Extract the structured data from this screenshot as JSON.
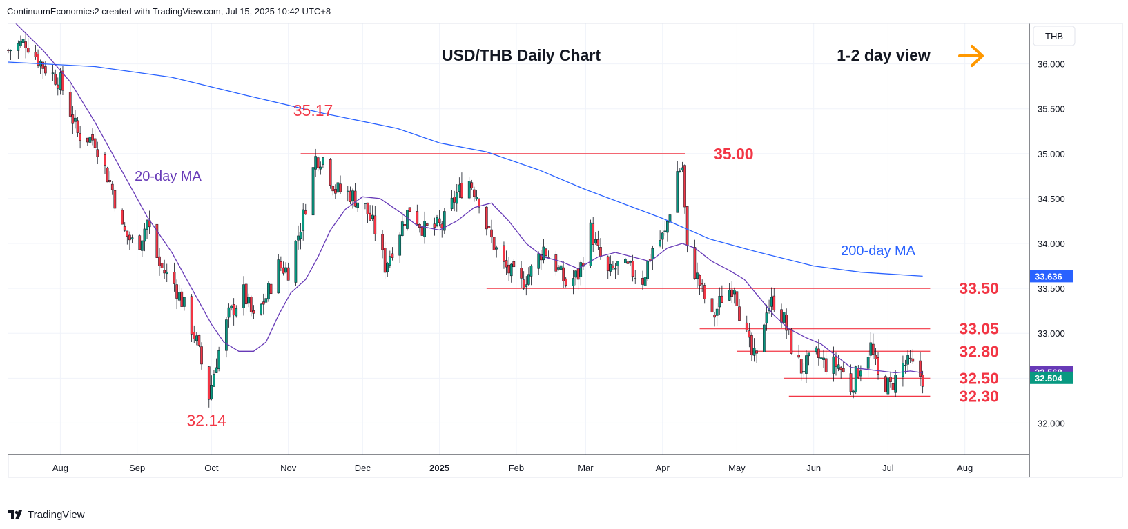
{
  "header": {
    "attribution": "ContinuumEconomics2 created with TradingView.com, Jul 15, 2025 10:42 UTC+8"
  },
  "branding": {
    "logo_text": "TradingView"
  },
  "chart_data": {
    "type": "candlestick",
    "title": "USD/THB Daily Chart",
    "view_note": "1-2 day view",
    "view_icon": "arrow-right-icon",
    "currency_label": "THB",
    "y_range": [
      31.65,
      36.45
    ],
    "y_ticks": [
      "36.000",
      "35.500",
      "35.000",
      "34.500",
      "34.000",
      "33.500",
      "33.000",
      "32.500",
      "32.000"
    ],
    "x_ticks": [
      {
        "label": "Aug",
        "date": "2024-08-01"
      },
      {
        "label": "Sep",
        "date": "2024-09-01"
      },
      {
        "label": "Oct",
        "date": "2024-10-01"
      },
      {
        "label": "Nov",
        "date": "2024-11-01"
      },
      {
        "label": "Dec",
        "date": "2024-12-01"
      },
      {
        "label": "2025",
        "date": "2025-01-01",
        "bold": true
      },
      {
        "label": "Feb",
        "date": "2025-02-01"
      },
      {
        "label": "Mar",
        "date": "2025-03-01"
      },
      {
        "label": "Apr",
        "date": "2025-04-01"
      },
      {
        "label": "May",
        "date": "2025-05-01"
      },
      {
        "label": "Jun",
        "date": "2025-06-01"
      },
      {
        "label": "Jul",
        "date": "2025-07-01"
      },
      {
        "label": "Aug",
        "date": "2025-08-01"
      }
    ],
    "x_range": [
      "2024-07-11",
      "2025-08-27"
    ],
    "colors": {
      "up": "#089981",
      "down": "#f23645",
      "ma20": "#673ab7",
      "ma200": "#2962ff",
      "level": "#f23645",
      "arrow": "#ff9800"
    },
    "price_close": [
      [
        "2024-07-11",
        36.15
      ],
      [
        "2024-07-18",
        36.25
      ],
      [
        "2024-07-25",
        35.98
      ],
      [
        "2024-08-01",
        35.8
      ],
      [
        "2024-08-08",
        35.22
      ],
      [
        "2024-08-15",
        35.15
      ],
      [
        "2024-08-22",
        34.6
      ],
      [
        "2024-08-26",
        34.15
      ],
      [
        "2024-09-01",
        33.95
      ],
      [
        "2024-09-05",
        34.25
      ],
      [
        "2024-09-10",
        33.75
      ],
      [
        "2024-09-16",
        33.55
      ],
      [
        "2024-09-20",
        33.3
      ],
      [
        "2024-09-25",
        32.9
      ],
      [
        "2024-09-30",
        32.3
      ],
      [
        "2024-10-03",
        32.7
      ],
      [
        "2024-10-08",
        33.2
      ],
      [
        "2024-10-14",
        33.45
      ],
      [
        "2024-10-18",
        33.15
      ],
      [
        "2024-10-23",
        33.4
      ],
      [
        "2024-10-28",
        33.75
      ],
      [
        "2024-11-01",
        33.7
      ],
      [
        "2024-11-07",
        34.3
      ],
      [
        "2024-11-12",
        34.95
      ],
      [
        "2024-11-15",
        34.95
      ],
      [
        "2024-11-20",
        34.6
      ],
      [
        "2024-11-26",
        34.55
      ],
      [
        "2024-12-02",
        34.4
      ],
      [
        "2024-12-06",
        34.15
      ],
      [
        "2024-12-10",
        33.75
      ],
      [
        "2024-12-16",
        34.15
      ],
      [
        "2024-12-20",
        34.4
      ],
      [
        "2024-12-26",
        34.15
      ],
      [
        "2025-01-02",
        34.2
      ],
      [
        "2025-01-08",
        34.55
      ],
      [
        "2025-01-13",
        34.7
      ],
      [
        "2025-01-17",
        34.5
      ],
      [
        "2025-01-21",
        34.1
      ],
      [
        "2025-01-27",
        33.75
      ],
      [
        "2025-02-03",
        33.55
      ],
      [
        "2025-02-07",
        33.7
      ],
      [
        "2025-02-12",
        33.95
      ],
      [
        "2025-02-17",
        33.75
      ],
      [
        "2025-02-21",
        33.55
      ],
      [
        "2025-02-26",
        33.65
      ],
      [
        "2025-03-03",
        34.15
      ],
      [
        "2025-03-06",
        33.9
      ],
      [
        "2025-03-10",
        33.65
      ],
      [
        "2025-03-14",
        33.75
      ],
      [
        "2025-03-19",
        33.7
      ],
      [
        "2025-03-24",
        33.6
      ],
      [
        "2025-03-28",
        33.95
      ],
      [
        "2025-04-02",
        34.1
      ],
      [
        "2025-04-07",
        34.8
      ],
      [
        "2025-04-09",
        34.85
      ],
      [
        "2025-04-11",
        33.9
      ],
      [
        "2025-04-16",
        33.55
      ],
      [
        "2025-04-21",
        33.15
      ],
      [
        "2025-04-25",
        33.4
      ],
      [
        "2025-04-30",
        33.55
      ],
      [
        "2025-05-02",
        33.25
      ],
      [
        "2025-05-07",
        32.75
      ],
      [
        "2025-05-09",
        32.7
      ],
      [
        "2025-05-13",
        33.3
      ],
      [
        "2025-05-16",
        33.35
      ],
      [
        "2025-05-20",
        33.15
      ],
      [
        "2025-05-23",
        32.85
      ],
      [
        "2025-05-27",
        32.6
      ],
      [
        "2025-06-02",
        32.75
      ],
      [
        "2025-06-06",
        32.65
      ],
      [
        "2025-06-11",
        32.65
      ],
      [
        "2025-06-16",
        32.4
      ],
      [
        "2025-06-20",
        32.65
      ],
      [
        "2025-06-24",
        32.85
      ],
      [
        "2025-06-27",
        32.5
      ],
      [
        "2025-07-02",
        32.4
      ],
      [
        "2025-07-07",
        32.65
      ],
      [
        "2025-07-10",
        32.65
      ],
      [
        "2025-07-15",
        32.5
      ]
    ],
    "ma20": [
      [
        "2024-07-14",
        36.45
      ],
      [
        "2024-07-25",
        36.15
      ],
      [
        "2024-08-05",
        35.8
      ],
      [
        "2024-08-15",
        35.35
      ],
      [
        "2024-08-25",
        34.85
      ],
      [
        "2024-09-05",
        34.3
      ],
      [
        "2024-09-15",
        33.9
      ],
      [
        "2024-09-25",
        33.4
      ],
      [
        "2024-10-01",
        33.1
      ],
      [
        "2024-10-06",
        32.9
      ],
      [
        "2024-10-12",
        32.8
      ],
      [
        "2024-10-18",
        32.8
      ],
      [
        "2024-10-23",
        32.9
      ],
      [
        "2024-10-28",
        33.2
      ],
      [
        "2024-11-02",
        33.45
      ],
      [
        "2024-11-08",
        33.6
      ],
      [
        "2024-11-13",
        33.85
      ],
      [
        "2024-11-18",
        34.15
      ],
      [
        "2024-11-24",
        34.38
      ],
      [
        "2024-12-01",
        34.52
      ],
      [
        "2024-12-08",
        34.5
      ],
      [
        "2024-12-16",
        34.35
      ],
      [
        "2024-12-23",
        34.2
      ],
      [
        "2025-01-01",
        34.15
      ],
      [
        "2025-01-08",
        34.25
      ],
      [
        "2025-01-15",
        34.4
      ],
      [
        "2025-01-22",
        34.45
      ],
      [
        "2025-01-29",
        34.25
      ],
      [
        "2025-02-05",
        34.0
      ],
      [
        "2025-02-12",
        33.85
      ],
      [
        "2025-02-19",
        33.8
      ],
      [
        "2025-02-26",
        33.72
      ],
      [
        "2025-03-06",
        33.85
      ],
      [
        "2025-03-13",
        33.9
      ],
      [
        "2025-03-20",
        33.85
      ],
      [
        "2025-03-27",
        33.8
      ],
      [
        "2025-04-03",
        33.95
      ],
      [
        "2025-04-09",
        34.0
      ],
      [
        "2025-04-14",
        33.95
      ],
      [
        "2025-04-21",
        33.8
      ],
      [
        "2025-04-28",
        33.7
      ],
      [
        "2025-05-04",
        33.6
      ],
      [
        "2025-05-10",
        33.4
      ],
      [
        "2025-05-16",
        33.2
      ],
      [
        "2025-05-22",
        33.05
      ],
      [
        "2025-05-29",
        32.95
      ],
      [
        "2025-06-04",
        32.88
      ],
      [
        "2025-06-10",
        32.75
      ],
      [
        "2025-06-16",
        32.62
      ],
      [
        "2025-06-22",
        32.6
      ],
      [
        "2025-06-28",
        32.58
      ],
      [
        "2025-07-04",
        32.56
      ],
      [
        "2025-07-10",
        32.58
      ],
      [
        "2025-07-15",
        32.56
      ]
    ],
    "ma200": [
      [
        "2024-07-11",
        36.02
      ],
      [
        "2024-08-15",
        35.97
      ],
      [
        "2024-09-15",
        35.85
      ],
      [
        "2024-10-15",
        35.65
      ],
      [
        "2024-11-15",
        35.45
      ],
      [
        "2024-12-15",
        35.28
      ],
      [
        "2025-01-01",
        35.12
      ],
      [
        "2025-01-20",
        35.02
      ],
      [
        "2025-02-10",
        34.82
      ],
      [
        "2025-03-01",
        34.6
      ],
      [
        "2025-04-01",
        34.28
      ],
      [
        "2025-04-20",
        34.05
      ],
      [
        "2025-05-10",
        33.9
      ],
      [
        "2025-06-01",
        33.75
      ],
      [
        "2025-06-20",
        33.68
      ],
      [
        "2025-07-15",
        33.636
      ]
    ],
    "ma_labels": [
      {
        "text": "20-day MA",
        "date": "2024-08-31",
        "price": 34.7,
        "color": "#673ab7"
      },
      {
        "text": "200-day MA",
        "date": "2025-06-12",
        "price": 33.87,
        "color": "#2962ff"
      }
    ],
    "levels": [
      {
        "price": 35.0,
        "label": "35.00",
        "from": "2024-11-06",
        "to": "2025-04-10"
      },
      {
        "price": 33.5,
        "label": "33.50",
        "from": "2025-01-20",
        "to": "2025-07-18"
      },
      {
        "price": 33.05,
        "label": "33.05",
        "from": "2025-04-16",
        "to": "2025-07-18"
      },
      {
        "price": 32.8,
        "label": "32.80",
        "from": "2025-05-01",
        "to": "2025-07-18"
      },
      {
        "price": 32.5,
        "label": "32.50",
        "from": "2025-05-20",
        "to": "2025-07-18"
      },
      {
        "price": 32.3,
        "label": "32.30",
        "from": "2025-05-22",
        "to": "2025-07-18"
      }
    ],
    "swing_labels": [
      {
        "text": "35.17",
        "date": "2024-11-11",
        "price": 35.42
      },
      {
        "text": "32.14",
        "date": "2024-09-29",
        "price": 31.97
      }
    ],
    "price_badges": [
      {
        "text": "33.636",
        "price": 33.636,
        "color": "#2962ff"
      },
      {
        "text": "32.568",
        "price": 32.568,
        "color": "#673ab7"
      },
      {
        "text": "32.504",
        "price": 32.504,
        "color": "#089981"
      }
    ]
  }
}
